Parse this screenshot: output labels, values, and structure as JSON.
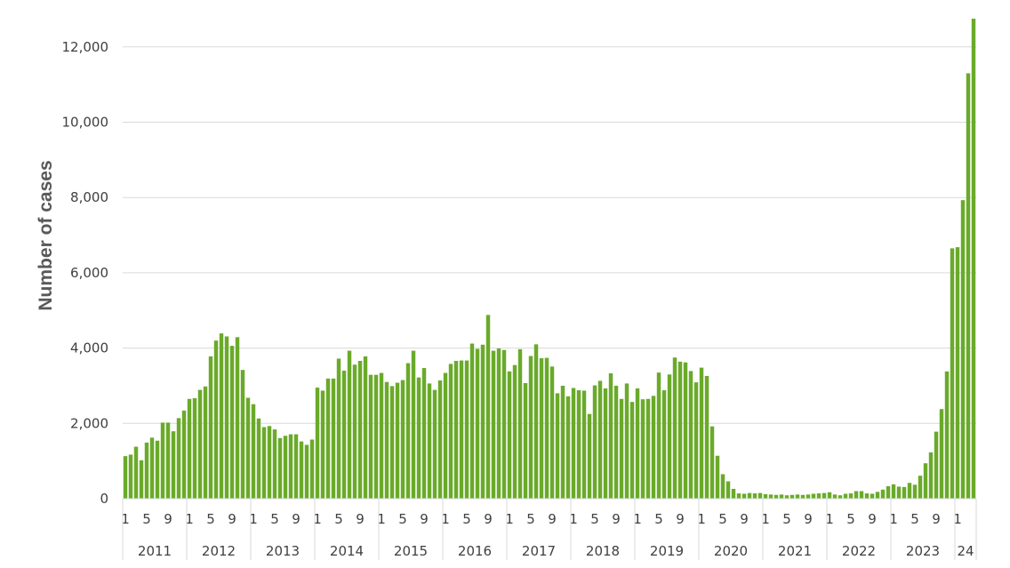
{
  "chart_data": {
    "type": "bar",
    "xlabel": "",
    "ylabel": "Number of cases",
    "ylim": [
      0,
      12800
    ],
    "yticks": [
      0,
      2000,
      4000,
      6000,
      8000,
      10000,
      12000
    ],
    "ytick_labels": [
      "0",
      "2,000",
      "4,000",
      "6,000",
      "8,000",
      "10,000",
      "12,000"
    ],
    "grid": true,
    "bar_color": "#6aaa2a",
    "grid_color": "#d9d9d9",
    "month_tick_labels": [
      "1",
      "5",
      "9"
    ],
    "year_labels": [
      "2011",
      "2012",
      "2013",
      "2014",
      "2015",
      "2016",
      "2017",
      "2018",
      "2019",
      "2020",
      "2021",
      "2022",
      "2023",
      "24"
    ],
    "monthly": [
      {
        "year": "2011",
        "values": [
          1130,
          1170,
          1380,
          1020,
          1490,
          1620,
          1540,
          2020,
          2020,
          1790,
          2140,
          2340
        ]
      },
      {
        "year": "2012",
        "values": [
          2650,
          2670,
          2890,
          2980,
          3780,
          4200,
          4390,
          4310,
          4060,
          4290,
          3420,
          2680
        ]
      },
      {
        "year": "2013",
        "values": [
          2510,
          2130,
          1900,
          1930,
          1840,
          1610,
          1670,
          1710,
          1710,
          1520,
          1430,
          1570
        ]
      },
      {
        "year": "2014",
        "values": [
          2950,
          2870,
          3190,
          3190,
          3720,
          3400,
          3930,
          3560,
          3660,
          3780,
          3290,
          3290
        ]
      },
      {
        "year": "2015",
        "values": [
          3340,
          3100,
          2990,
          3080,
          3150,
          3600,
          3930,
          3220,
          3470,
          3060,
          2890,
          3140
        ]
      },
      {
        "year": "2016",
        "values": [
          3340,
          3580,
          3660,
          3670,
          3670,
          4120,
          3980,
          4090,
          4880,
          3930,
          3990,
          3950
        ]
      },
      {
        "year": "2017",
        "values": [
          3380,
          3550,
          3970,
          3070,
          3790,
          4100,
          3730,
          3740,
          3510,
          2800,
          3000,
          2720
        ]
      },
      {
        "year": "2018",
        "values": [
          2940,
          2880,
          2870,
          2250,
          3010,
          3130,
          2930,
          3330,
          3000,
          2650,
          3060,
          2570
        ]
      },
      {
        "year": "2019",
        "values": [
          2930,
          2640,
          2650,
          2730,
          3350,
          2880,
          3300,
          3750,
          3640,
          3620,
          3390,
          3090
        ]
      },
      {
        "year": "2020",
        "values": [
          3480,
          3260,
          1920,
          1140,
          650,
          460,
          260,
          140,
          130,
          150,
          140,
          150
        ]
      },
      {
        "year": "2021",
        "values": [
          120,
          110,
          100,
          110,
          90,
          100,
          110,
          100,
          110,
          130,
          140,
          150
        ]
      },
      {
        "year": "2022",
        "values": [
          170,
          110,
          90,
          130,
          140,
          200,
          200,
          140,
          130,
          180,
          240,
          330
        ]
      },
      {
        "year": "2023",
        "values": [
          380,
          320,
          310,
          420,
          370,
          610,
          940,
          1230,
          1780,
          2380,
          3380,
          6650
        ]
      },
      {
        "year": "24",
        "values": [
          6680,
          7930,
          11300,
          12750
        ]
      }
    ]
  }
}
